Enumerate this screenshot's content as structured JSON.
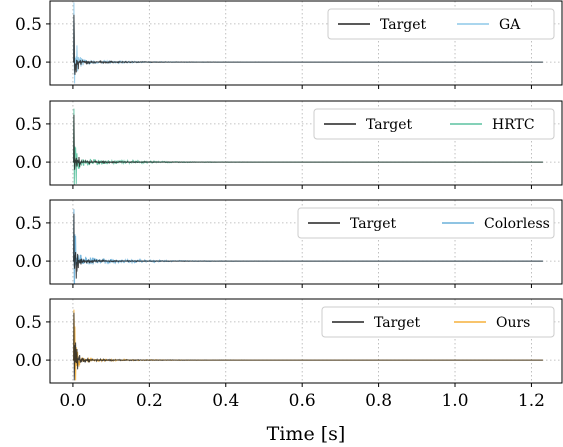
{
  "chart_data": {
    "type": "line",
    "xlabel": "Time [s]",
    "xlim": [
      -0.06,
      1.28
    ],
    "x_ticks": [
      0.0,
      0.2,
      0.4,
      0.6,
      0.8,
      1.0,
      1.2
    ],
    "x_tick_labels": [
      "0.0",
      "0.2",
      "0.4",
      "0.6",
      "0.8",
      "1.0",
      "1.2"
    ],
    "ylim": [
      -0.3,
      0.8
    ],
    "y_ticks": [
      0.0,
      0.5
    ],
    "y_tick_labels": [
      "0.0",
      "0.5"
    ],
    "grid": true,
    "legend_position": "upper right",
    "duration": 1.23,
    "panels": [
      {
        "series": [
          {
            "name": "Target",
            "color": "#222222",
            "peak": 0.62,
            "trough": -0.1,
            "decay": 0.006,
            "tail": 0.02,
            "noise": 0.05
          },
          {
            "name": "GA",
            "color": "#8ec8e8",
            "peak": 0.78,
            "trough": -0.28,
            "decay": 0.006,
            "tail": 0.035,
            "noise": 0.08
          }
        ]
      },
      {
        "series": [
          {
            "name": "Target",
            "color": "#222222",
            "peak": 0.62,
            "trough": -0.1,
            "decay": 0.006,
            "tail": 0.02,
            "noise": 0.05
          },
          {
            "name": "HRTC",
            "color": "#5cc2a0",
            "peak": 0.7,
            "trough": -0.18,
            "decay": 0.006,
            "tail": 0.06,
            "noise": 0.1
          }
        ]
      },
      {
        "series": [
          {
            "name": "Target",
            "color": "#222222",
            "peak": 0.62,
            "trough": -0.1,
            "decay": 0.006,
            "tail": 0.02,
            "noise": 0.05
          },
          {
            "name": "Colorless",
            "color": "#6ab0da",
            "peak": 0.68,
            "trough": -0.22,
            "decay": 0.006,
            "tail": 0.07,
            "noise": 0.12
          }
        ]
      },
      {
        "series": [
          {
            "name": "Target",
            "color": "#222222",
            "peak": 0.62,
            "trough": -0.1,
            "decay": 0.006,
            "tail": 0.02,
            "noise": 0.05
          },
          {
            "name": "Ours",
            "color": "#f5b13b",
            "peak": 0.66,
            "trough": -0.12,
            "decay": 0.006,
            "tail": 0.025,
            "noise": 0.06
          }
        ]
      }
    ]
  }
}
